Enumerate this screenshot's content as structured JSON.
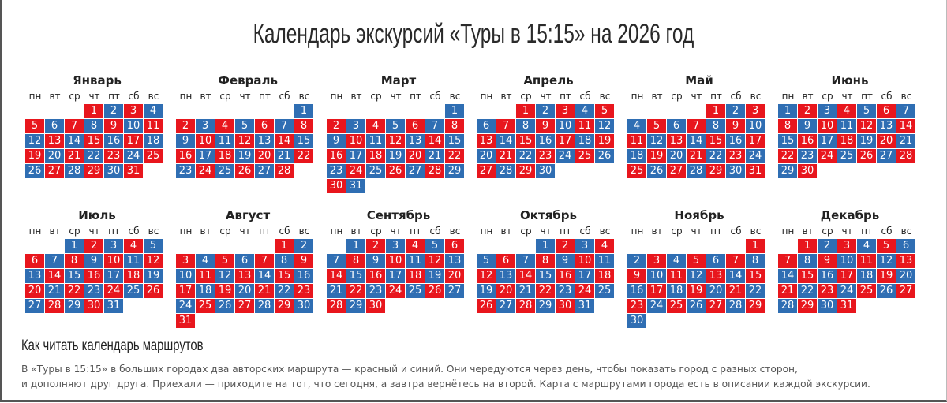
{
  "title": "Календарь экскурсий «Туры в 15:15» на 2026 год",
  "weekdays": [
    "пн",
    "вт",
    "ср",
    "чт",
    "пт",
    "сб",
    "вс"
  ],
  "colors": {
    "red_route": "#e8161d",
    "blue_route": "#2f6eb3"
  },
  "months": [
    {
      "name": "Январь",
      "days": 31,
      "first_weekday": "чт",
      "first_day_color": "red"
    },
    {
      "name": "Февраль",
      "days": 28,
      "first_weekday": "вс",
      "first_day_color": "blue"
    },
    {
      "name": "Март",
      "days": 31,
      "first_weekday": "вс",
      "first_day_color": "blue"
    },
    {
      "name": "Апрель",
      "days": 30,
      "first_weekday": "ср",
      "first_day_color": "red"
    },
    {
      "name": "Май",
      "days": 31,
      "first_weekday": "пт",
      "first_day_color": "red"
    },
    {
      "name": "Июнь",
      "days": 30,
      "first_weekday": "пн",
      "first_day_color": "blue"
    },
    {
      "name": "Июль",
      "days": 31,
      "first_weekday": "ср",
      "first_day_color": "blue"
    },
    {
      "name": "Август",
      "days": 31,
      "first_weekday": "сб",
      "first_day_color": "red"
    },
    {
      "name": "Сентябрь",
      "days": 30,
      "first_weekday": "вт",
      "first_day_color": "blue"
    },
    {
      "name": "Октябрь",
      "days": 31,
      "first_weekday": "чт",
      "first_day_color": "blue"
    },
    {
      "name": "Ноябрь",
      "days": 30,
      "first_weekday": "вс",
      "first_day_color": "red"
    },
    {
      "name": "Декабрь",
      "days": 31,
      "first_weekday": "вт",
      "first_day_color": "red"
    }
  ],
  "color_pattern": "red and blue alternate day by day",
  "howto": {
    "heading": "Как читать календарь маршрутов",
    "line1": "В «Туры в 15:15» в больших городах два авторских маршрута — красный и синий. Они чередуются через день, чтобы показать город с разных сторон,",
    "line2": "и дополняют друг друга. Приехали — приходите на тот, что сегодня, а завтра вернётесь на второй. Карта с маршрутами города есть в описании каждой экскурсии."
  }
}
